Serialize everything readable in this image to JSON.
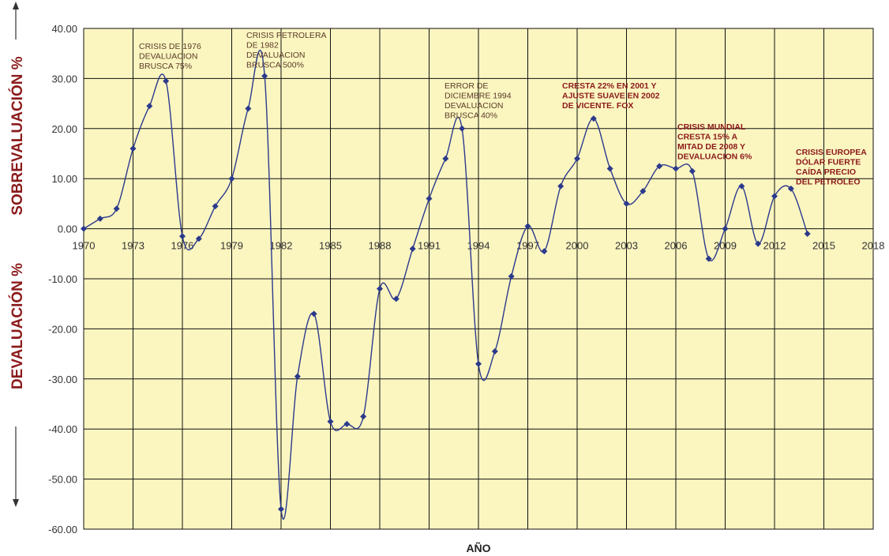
{
  "chart_data": {
    "type": "line",
    "title": "",
    "xlabel": "AÑO",
    "ylabel_top": "SOBREVALUACIÓN %",
    "ylabel_bottom": "DEVALUACIÓN %",
    "xlim": [
      1970,
      2018
    ],
    "ylim": [
      -60,
      40
    ],
    "x_ticks": [
      "1970",
      "1973",
      "1976",
      "1979",
      "1982",
      "1985",
      "1988",
      "1991",
      "1994",
      "1997",
      "2000",
      "2003",
      "2006",
      "2009",
      "2012",
      "2015",
      "2018"
    ],
    "y_ticks": [
      "40.00",
      "30.00",
      "20.00",
      "10.00",
      "0.00",
      "-10.00",
      "-20.00",
      "-30.00",
      "-40.00",
      "-50.00",
      "-60.00"
    ],
    "grid": true,
    "colors": {
      "plot_bg": "#fbf5c0",
      "line": "#2b3a8c",
      "grid": "#111111",
      "annotation_default": "#5a3c28",
      "annotation_strong": "#8b1a1a",
      "axis_title": "#8b1a1a"
    },
    "series": [
      {
        "x": [
          1970,
          1971,
          1972,
          1973,
          1974,
          1975,
          1976,
          1977,
          1978,
          1979,
          1980,
          1981,
          1982,
          1983,
          1984,
          1985,
          1986,
          1987,
          1988,
          1989,
          1990,
          1991,
          1992,
          1993,
          1994,
          1995,
          1996,
          1997,
          1998,
          1999,
          2000,
          2001,
          2002,
          2003,
          2004,
          2005,
          2006,
          2007,
          2008,
          2009,
          2010,
          2011,
          2012,
          2013,
          2014
        ],
        "values": [
          0,
          2,
          4,
          16,
          24.5,
          29.5,
          -1.5,
          -2,
          4.5,
          10,
          24,
          30.5,
          -56,
          -29.5,
          -17,
          -38.5,
          -39,
          -37.5,
          -12,
          -14,
          -4,
          6,
          14,
          20,
          -27,
          -24.5,
          -9.5,
          0.5,
          -4.5,
          8.5,
          14,
          22,
          12,
          5,
          7.5,
          12.5,
          12,
          11.5,
          -6,
          0,
          8.5,
          -3,
          6.5,
          8,
          -1
        ]
      }
    ],
    "annotations": [
      {
        "lines": [
          "CRISIS DE 1976",
          "DEVALUACION",
          "BRUSCA 75%"
        ],
        "color": "default"
      },
      {
        "lines": [
          "CRISIS PETROLERA",
          "DE 1982",
          "DEVALUACION",
          "BRUSCA 500%"
        ],
        "color": "default"
      },
      {
        "lines": [
          "ERROR DE",
          "DICIEMBRE 1994",
          "DEVALUACION",
          "BRUSCA 40%"
        ],
        "color": "default"
      },
      {
        "lines": [
          "CRESTA 22% EN 2001 Y",
          "AJUSTE SUAVE EN 2002",
          "DE VICENTE. FOX"
        ],
        "color": "strong"
      },
      {
        "lines": [
          "CRISIS MUNDIAL",
          "CRESTA 15%   A",
          "MITAD DE 2008  Y",
          "DEVALUACION 6%"
        ],
        "color": "strong"
      },
      {
        "lines": [
          "CRISIS EUROPEA",
          "DÓLAR FUERTE",
          "CAÍDA PRECIO",
          "DEL PETROLEO"
        ],
        "color": "strong"
      }
    ]
  }
}
